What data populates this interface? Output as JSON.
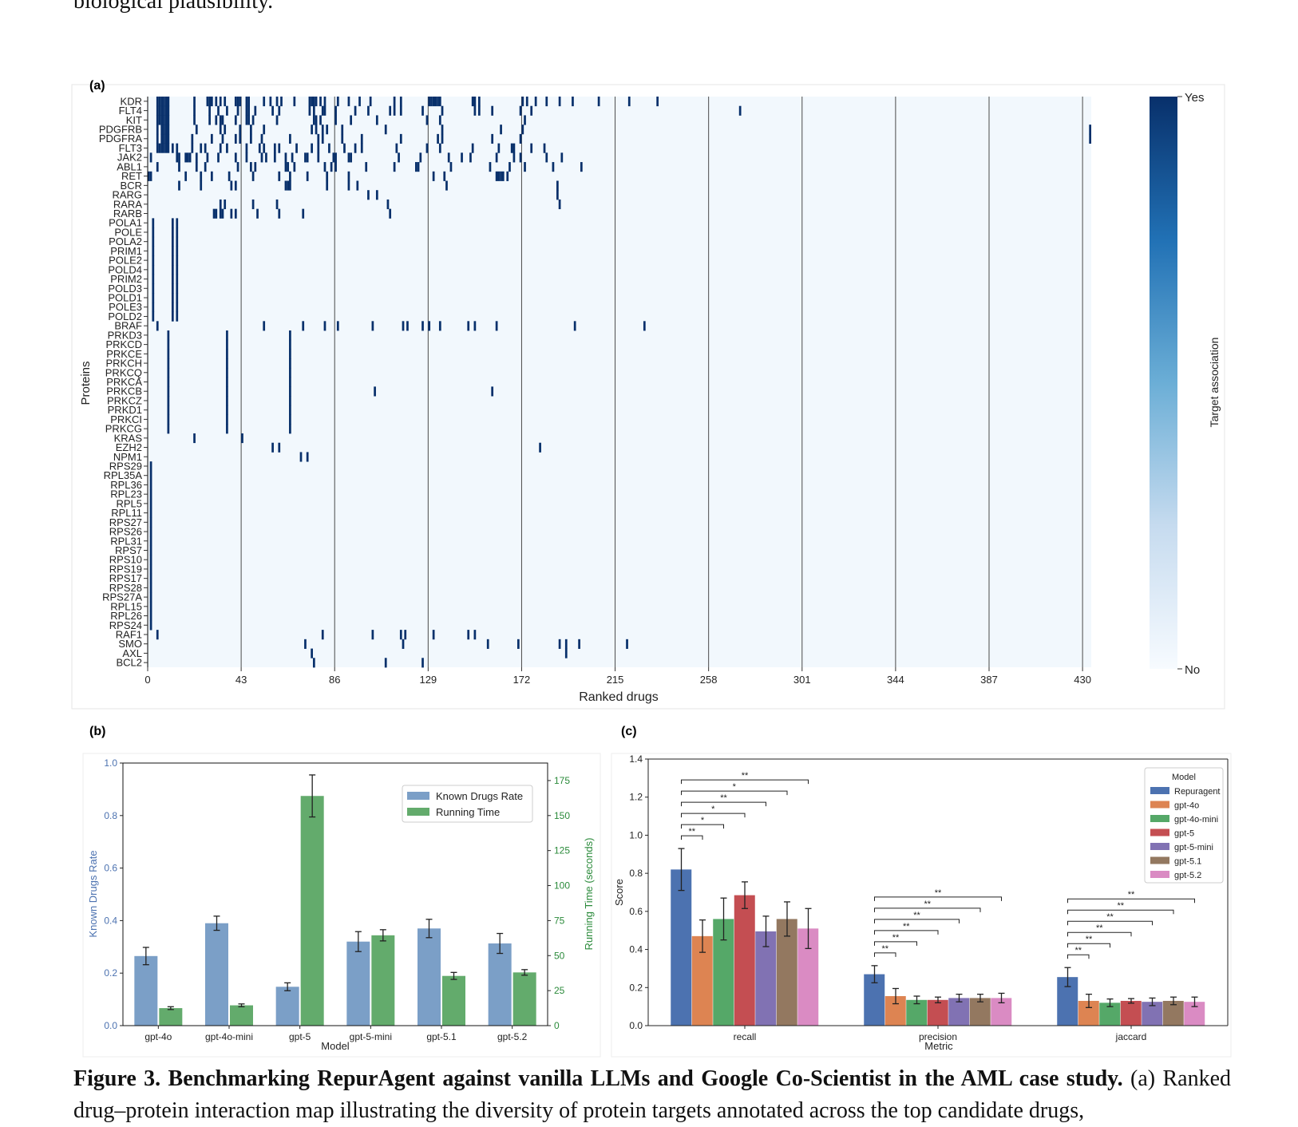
{
  "page_text": {
    "top_line": "biological plausibility.",
    "caption_bold": "Figure 3. Benchmarking RepurAgent against vanilla LLMs and Google Co-Scientist in the AML case study.",
    "caption_rest": " (a) Ranked drug–protein interaction map illustrating the diversity of protein targets annotated across the top candidate drugs,"
  },
  "colors": {
    "dark_blue": "#08306b",
    "pale_blue": "#f2f8fd",
    "steel_blue": "#7b9fc7",
    "green": "#63ab6c",
    "deep_blue": "#4c72b0",
    "orange": "#dd8452",
    "mid_green": "#55a868",
    "red": "#c44e52",
    "purple": "#8172b3",
    "brown": "#937860",
    "pink": "#da8bc3"
  },
  "chart_data": [
    {
      "panel": "(a)",
      "type": "heatmap",
      "xlabel": "Ranked drugs",
      "ylabel": "Proteins",
      "x_ticks": [
        0,
        43,
        86,
        129,
        172,
        215,
        258,
        301,
        344,
        387,
        430
      ],
      "xlim": [
        0,
        434
      ],
      "colorbar": {
        "label": "Target association",
        "top": "Yes",
        "bottom": "No"
      },
      "proteins": [
        "KDR",
        "FLT4",
        "KIT",
        "PDGFRB",
        "PDGFRA",
        "FLT3",
        "JAK2",
        "ABL1",
        "RET",
        "BCR",
        "RARG",
        "RARA",
        "RARB",
        "POLA1",
        "POLE",
        "POLA2",
        "PRIM1",
        "POLE2",
        "POLD4",
        "PRIM2",
        "POLD3",
        "POLD1",
        "POLE3",
        "POLD2",
        "BRAF",
        "PRKD3",
        "PRKCD",
        "PRKCE",
        "PRKCH",
        "PRKCQ",
        "PRKCA",
        "PRKCB",
        "PRKCZ",
        "PRKD1",
        "PRKCI",
        "PRKCG",
        "KRAS",
        "EZH2",
        "NPM1",
        "RPS29",
        "RPL35A",
        "RPL36",
        "RPL23",
        "RPL5",
        "RPL11",
        "RPS27",
        "RPS26",
        "RPL31",
        "RPS7",
        "RPS10",
        "RPS19",
        "RPS17",
        "RPS28",
        "RPS27A",
        "RPL15",
        "RPL26",
        "RPS24",
        "RAF1",
        "SMO",
        "AXL",
        "BCL2"
      ],
      "associations": {
        "KDR": [
          4,
          5,
          6,
          7,
          8,
          9,
          21,
          27,
          28,
          29,
          31,
          33,
          35,
          40,
          41,
          42,
          45,
          46,
          53,
          56,
          59,
          61,
          67,
          74,
          75,
          76,
          77,
          79,
          81,
          87,
          92,
          97,
          102,
          113,
          116,
          129,
          130,
          131,
          132,
          133,
          134,
          149,
          150,
          152,
          172,
          174,
          178,
          183,
          189,
          195,
          207,
          221,
          234
        ],
        "FLT4": [
          4,
          5,
          6,
          7,
          8,
          9,
          21,
          28,
          32,
          36,
          41,
          45,
          46,
          49,
          57,
          60,
          74,
          76,
          80,
          81,
          86,
          95,
          101,
          111,
          113,
          116,
          126,
          135,
          150,
          152,
          158,
          171,
          176,
          272
        ],
        "KIT": [
          4,
          5,
          6,
          7,
          8,
          9,
          21,
          28,
          31,
          33,
          34,
          40,
          45,
          46,
          48,
          59,
          76,
          77,
          79,
          86,
          93,
          105,
          128,
          134,
          173
        ],
        "PDGFRB": [
          4,
          6,
          7,
          8,
          9,
          22,
          33,
          35,
          42,
          47,
          53,
          75,
          77,
          80,
          82,
          89,
          109,
          135,
          162,
          172,
          433
        ],
        "PDGFRA": [
          4,
          6,
          7,
          8,
          9,
          20,
          29,
          34,
          40,
          42,
          47,
          52,
          65,
          78,
          80,
          89,
          98,
          116,
          133,
          135,
          158,
          171,
          433
        ],
        "FLT3": [
          4,
          5,
          6,
          7,
          8,
          9,
          11,
          13,
          20,
          24,
          26,
          33,
          36,
          45,
          51,
          53,
          58,
          60,
          68,
          75,
          78,
          83,
          90,
          95,
          98,
          114,
          128,
          134,
          149,
          161,
          167,
          168,
          176,
          182
        ],
        "JAK2": [
          1,
          13,
          14,
          17,
          18,
          19,
          22,
          27,
          32,
          40,
          45,
          52,
          54,
          58,
          63,
          66,
          72,
          73,
          78,
          85,
          86,
          92,
          93,
          115,
          125,
          138,
          144,
          148,
          160,
          168,
          171,
          183,
          190
        ],
        "ABL1": [
          4,
          14,
          22,
          26,
          41,
          47,
          49,
          63,
          64,
          67,
          81,
          84,
          86,
          100,
          113,
          123,
          124,
          139,
          157,
          166,
          173,
          186,
          199
        ],
        "RET": [
          0,
          1,
          17,
          24,
          29,
          37,
          48,
          60,
          65,
          73,
          82,
          92,
          131,
          136,
          160,
          161,
          162,
          163,
          165
        ],
        "BCR": [
          14,
          24,
          38,
          40,
          63,
          64,
          65,
          82,
          92,
          96,
          137,
          188
        ],
        "RARG": [
          101,
          105,
          188
        ],
        "RARA": [
          33,
          35,
          48,
          59,
          110,
          189
        ],
        "RARB": [
          30,
          31,
          33,
          34,
          38,
          40,
          50,
          60,
          71,
          111
        ],
        "POLA1": [
          2,
          11,
          13
        ],
        "POLE": [
          2,
          11,
          13
        ],
        "POLA2": [
          2,
          11,
          13
        ],
        "PRIM1": [
          2,
          11,
          13
        ],
        "POLE2": [
          2,
          11,
          13
        ],
        "POLD4": [
          2,
          11,
          13
        ],
        "PRIM2": [
          2,
          11,
          13
        ],
        "POLD3": [
          2,
          11,
          13
        ],
        "POLD1": [
          2,
          11,
          13
        ],
        "POLE3": [
          2,
          11,
          13
        ],
        "POLD2": [
          2,
          11,
          13
        ],
        "BRAF": [
          4,
          53,
          71,
          81,
          87,
          103,
          117,
          119,
          126,
          129,
          134,
          147,
          150,
          160,
          196,
          228
        ],
        "PRKD3": [
          9,
          36,
          65
        ],
        "PRKCD": [
          9,
          36,
          65
        ],
        "PRKCE": [
          9,
          36,
          65
        ],
        "PRKCH": [
          9,
          36,
          65
        ],
        "PRKCQ": [
          9,
          36,
          65
        ],
        "PRKCA": [
          9,
          36,
          65
        ],
        "PRKCB": [
          9,
          36,
          65,
          104,
          158
        ],
        "PRKCZ": [
          9,
          36,
          65
        ],
        "PRKD1": [
          9,
          36,
          65
        ],
        "PRKCI": [
          9,
          36,
          65
        ],
        "PRKCG": [
          9,
          36,
          65
        ],
        "KRAS": [
          21,
          43
        ],
        "EZH2": [
          57,
          60,
          180
        ],
        "NPM1": [
          70,
          73
        ],
        "RPS29": [
          1
        ],
        "RPL35A": [
          1
        ],
        "RPL36": [
          1
        ],
        "RPL23": [
          1
        ],
        "RPL5": [
          1
        ],
        "RPL11": [
          1
        ],
        "RPS27": [
          1
        ],
        "RPS26": [
          1
        ],
        "RPL31": [
          1
        ],
        "RPS7": [
          1
        ],
        "RPS10": [
          1
        ],
        "RPS19": [
          1
        ],
        "RPS17": [
          1
        ],
        "RPS28": [
          1
        ],
        "RPS27A": [
          1
        ],
        "RPL15": [
          1
        ],
        "RPL26": [
          1
        ],
        "RPS24": [
          1
        ],
        "RAF1": [
          4,
          80,
          103,
          116,
          118,
          131,
          147,
          150
        ],
        "SMO": [
          72,
          117,
          156,
          170,
          189,
          192,
          198,
          220
        ],
        "AXL": [
          75,
          192
        ],
        "BCL2": [
          76,
          109,
          126
        ]
      }
    },
    {
      "panel": "(b)",
      "type": "bar",
      "xlabel": "Model",
      "ylabel": "Known Drugs Rate",
      "ylabel_right": "Running Time (seconds)",
      "categories": [
        "gpt-4o",
        "gpt-4o-mini",
        "gpt-5",
        "gpt-5-mini",
        "gpt-5.1",
        "gpt-5.2"
      ],
      "ylim": [
        0,
        1.0
      ],
      "ylim_right": [
        0,
        187.5
      ],
      "y_ticks": [
        0.0,
        0.2,
        0.4,
        0.6,
        0.8,
        1.0
      ],
      "y_ticks_right": [
        0,
        25,
        50,
        75,
        100,
        125,
        150,
        175
      ],
      "series": [
        {
          "name": "Known Drugs Rate",
          "axis": "left",
          "values": [
            0.265,
            0.39,
            0.148,
            0.32,
            0.37,
            0.313
          ],
          "errors": [
            0.033,
            0.027,
            0.015,
            0.038,
            0.035,
            0.038
          ]
        },
        {
          "name": "Running Time",
          "axis": "right",
          "values": [
            12.5,
            14.5,
            164,
            64.5,
            35.5,
            38
          ],
          "errors": [
            1,
            1,
            15,
            4,
            2.5,
            2
          ]
        }
      ],
      "legend_position": "upper right"
    },
    {
      "panel": "(c)",
      "type": "bar",
      "xlabel": "Metric",
      "ylabel": "Score",
      "categories": [
        "recall",
        "precision",
        "jaccard"
      ],
      "ylim": [
        0,
        1.4
      ],
      "y_ticks": [
        0.0,
        0.2,
        0.4,
        0.6,
        0.8,
        1.0,
        1.2,
        1.4
      ],
      "legend_title": "Model",
      "legend_position": "upper right",
      "series": [
        {
          "name": "Repuragent",
          "values": [
            0.82,
            0.27,
            0.255
          ],
          "errors": [
            0.11,
            0.045,
            0.05
          ]
        },
        {
          "name": "gpt-4o",
          "values": [
            0.47,
            0.155,
            0.13
          ],
          "errors": [
            0.085,
            0.04,
            0.035
          ]
        },
        {
          "name": "gpt-4o-mini",
          "values": [
            0.56,
            0.135,
            0.12
          ],
          "errors": [
            0.11,
            0.02,
            0.02
          ]
        },
        {
          "name": "gpt-5",
          "values": [
            0.685,
            0.135,
            0.13
          ],
          "errors": [
            0.07,
            0.015,
            0.012
          ]
        },
        {
          "name": "gpt-5-mini",
          "values": [
            0.495,
            0.145,
            0.125
          ],
          "errors": [
            0.08,
            0.02,
            0.02
          ]
        },
        {
          "name": "gpt-5.1",
          "values": [
            0.56,
            0.145,
            0.13
          ],
          "errors": [
            0.09,
            0.02,
            0.02
          ]
        },
        {
          "name": "gpt-5.2",
          "values": [
            0.51,
            0.145,
            0.125
          ],
          "errors": [
            0.105,
            0.025,
            0.025
          ]
        }
      ],
      "significance": {
        "recall": [
          "",
          "**",
          "*",
          "*",
          "**",
          "*",
          "**"
        ],
        "precision": [
          "",
          "**",
          "**",
          "**",
          "**",
          "**",
          "**"
        ],
        "jaccard": [
          "",
          "**",
          "**",
          "**",
          "**",
          "**",
          "**"
        ]
      }
    }
  ]
}
